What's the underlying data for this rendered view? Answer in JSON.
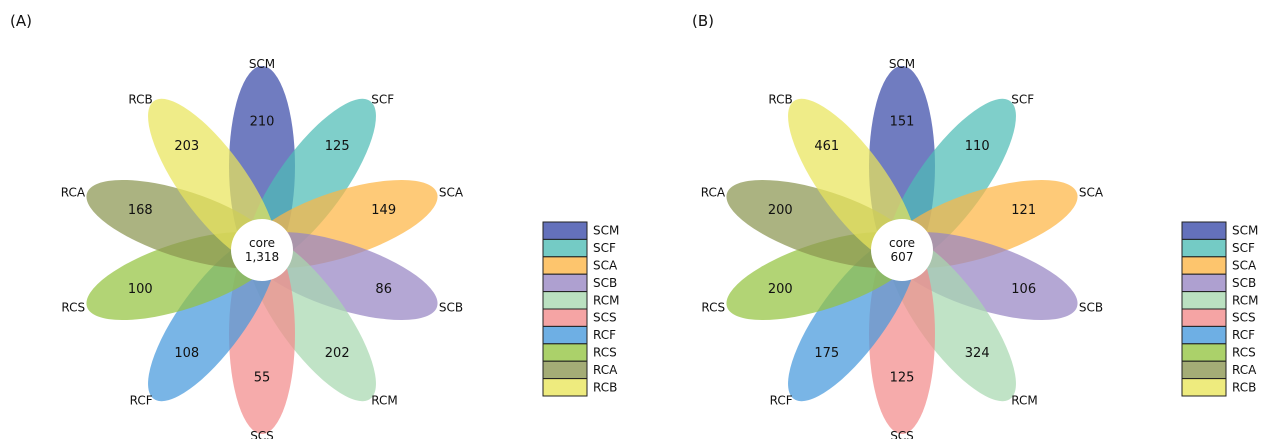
{
  "panels": [
    {
      "label": "(A)"
    },
    {
      "label": "(B)"
    }
  ],
  "chart_data": [
    {
      "type": "flower",
      "panel": "(A)",
      "center_label": "core",
      "center_value": "1,318",
      "categories": [
        "SCM",
        "SCF",
        "SCA",
        "SCB",
        "RCM",
        "SCS",
        "RCF",
        "RCS",
        "RCA",
        "RCB"
      ],
      "values": [
        210,
        125,
        149,
        86,
        202,
        55,
        108,
        100,
        168,
        203
      ],
      "colors": [
        "#3949a8",
        "#4dbdb5",
        "#fdb544",
        "#9785c3",
        "#a8d8b0",
        "#f28b8b",
        "#4599dd",
        "#94c440",
        "#8a9550",
        "#e9e55a"
      ],
      "legend": {
        "position": "right",
        "entries": [
          "SCM",
          "SCF",
          "SCA",
          "SCB",
          "RCM",
          "SCS",
          "RCF",
          "RCS",
          "RCA",
          "RCB"
        ]
      }
    },
    {
      "type": "flower",
      "panel": "(B)",
      "center_label": "core",
      "center_value": "607",
      "categories": [
        "SCM",
        "SCF",
        "SCA",
        "SCB",
        "RCM",
        "SCS",
        "RCF",
        "RCS",
        "RCA",
        "RCB"
      ],
      "values": [
        151,
        110,
        121,
        106,
        324,
        125,
        175,
        200,
        200,
        461
      ],
      "colors": [
        "#3949a8",
        "#4dbdb5",
        "#fdb544",
        "#9785c3",
        "#a8d8b0",
        "#f28b8b",
        "#4599dd",
        "#94c440",
        "#8a9550",
        "#e9e55a"
      ],
      "legend": {
        "position": "right",
        "entries": [
          "SCM",
          "SCF",
          "SCA",
          "SCB",
          "RCM",
          "SCS",
          "RCF",
          "RCS",
          "RCA",
          "RCB"
        ]
      }
    }
  ]
}
